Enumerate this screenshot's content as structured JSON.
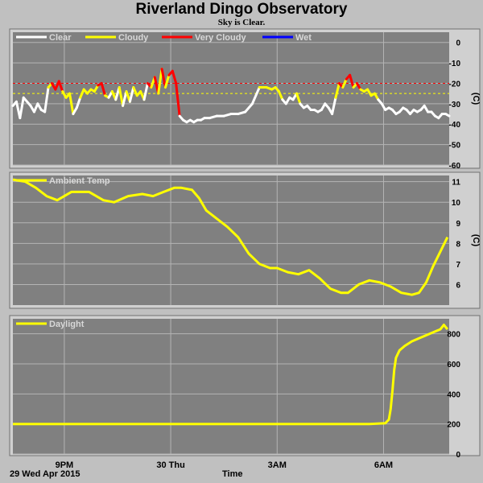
{
  "title": "Riverland Dingo Observatory",
  "subtitle": "Sky is Clear.",
  "footer": {
    "date": "29 Wed Apr 2015",
    "xlabel": "Time"
  },
  "x_ticks": [
    {
      "label": "9PM",
      "t": 0
    },
    {
      "label": "30 Thu",
      "t": 3
    },
    {
      "label": "3AM",
      "t": 6
    },
    {
      "label": "6AM",
      "t": 9
    }
  ],
  "colors": {
    "panel_bg": "#808080",
    "grid": "#b4b4b4",
    "clear": "#ffffff",
    "cloudy": "#ffff00",
    "very_cloudy": "#ff0000",
    "wet": "#0000ff",
    "ambient": "#ffff00",
    "daylight": "#ffff00",
    "threshold_cloudy": "#ffff00",
    "threshold_very_cloudy": "#ff0000",
    "legend_text": "#d8d8d8"
  },
  "chart_data": [
    {
      "type": "line",
      "name": "sky",
      "legend": [
        "Clear",
        "Cloudy",
        "Very Cloudy",
        "Wet"
      ],
      "ylabel": "(C)",
      "yticks": [
        0,
        -10,
        -20,
        -30,
        -40,
        -50,
        -60
      ],
      "ylim": [
        -60,
        5
      ],
      "xlim": [
        -1.45,
        10.85
      ],
      "thresholds": [
        -20,
        -25
      ],
      "x": [
        -1.45,
        -1.35,
        -1.25,
        -1.15,
        -1.05,
        -0.95,
        -0.85,
        -0.75,
        -0.65,
        -0.55,
        -0.45,
        -0.35,
        -0.25,
        -0.15,
        -0.05,
        0.05,
        0.15,
        0.25,
        0.35,
        0.45,
        0.55,
        0.65,
        0.75,
        0.85,
        0.95,
        1.05,
        1.15,
        1.25,
        1.35,
        1.45,
        1.55,
        1.65,
        1.75,
        1.85,
        1.95,
        2.05,
        2.15,
        2.25,
        2.35,
        2.45,
        2.55,
        2.65,
        2.75,
        2.85,
        2.95,
        3.05,
        3.15,
        3.25,
        3.35,
        3.45,
        3.55,
        3.65,
        3.75,
        3.85,
        3.95,
        4.1,
        4.3,
        4.5,
        4.7,
        4.9,
        5.1,
        5.3,
        5.5,
        5.7,
        5.85,
        5.95,
        6.05,
        6.15,
        6.25,
        6.35,
        6.45,
        6.55,
        6.65,
        6.75,
        6.85,
        6.95,
        7.05,
        7.15,
        7.25,
        7.35,
        7.45,
        7.55,
        7.65,
        7.75,
        7.85,
        7.95,
        8.05,
        8.15,
        8.25,
        8.35,
        8.45,
        8.55,
        8.65,
        8.75,
        8.85,
        8.95,
        9.05,
        9.15,
        9.25,
        9.35,
        9.45,
        9.55,
        9.65,
        9.75,
        9.85,
        9.95,
        10.05,
        10.15,
        10.25,
        10.35,
        10.45,
        10.55,
        10.65,
        10.75,
        10.85
      ],
      "y": [
        -31,
        -29,
        -37,
        -27,
        -29,
        -31,
        -34,
        -30,
        -33,
        -34,
        -22,
        -20,
        -23,
        -19,
        -24,
        -27,
        -25,
        -35,
        -32,
        -27,
        -23,
        -25,
        -23,
        -24,
        -21,
        -20,
        -26,
        -27,
        -24,
        -28,
        -22,
        -31,
        -24,
        -29,
        -22,
        -26,
        -24,
        -28,
        -20,
        -22,
        -17,
        -25,
        -13,
        -22,
        -16,
        -14,
        -20,
        -36,
        -38,
        -39,
        -38,
        -39,
        -38,
        -38,
        -37,
        -37,
        -36,
        -36,
        -35,
        -35,
        -34,
        -30,
        -22,
        -22,
        -23,
        -22,
        -24,
        -28,
        -30,
        -27,
        -28,
        -25,
        -30,
        -32,
        -31,
        -33,
        -33,
        -34,
        -33,
        -30,
        -32,
        -35,
        -27,
        -20,
        -22,
        -18,
        -16,
        -22,
        -20,
        -23,
        -24,
        -23,
        -26,
        -25,
        -28,
        -30,
        -33,
        -32,
        -33,
        -35,
        -34,
        -32,
        -33,
        -35,
        -33,
        -34,
        -33,
        -31,
        -34,
        -34,
        -36,
        -37,
        -35,
        -35,
        -36
      ],
      "state": [
        "clear",
        "clear",
        "clear",
        "clear",
        "clear",
        "clear",
        "clear",
        "clear",
        "clear",
        "clear",
        "cloudy",
        "very_cloudy",
        "very_cloudy",
        "very_cloudy",
        "cloudy",
        "cloudy",
        "cloudy",
        "clear",
        "clear",
        "cloudy",
        "cloudy",
        "cloudy",
        "cloudy",
        "cloudy",
        "very_cloudy",
        "very_cloudy",
        "cloudy",
        "clear",
        "cloudy",
        "clear",
        "cloudy",
        "clear",
        "cloudy",
        "clear",
        "cloudy",
        "cloudy",
        "cloudy",
        "clear",
        "very_cloudy",
        "cloudy",
        "very_cloudy",
        "cloudy",
        "very_cloudy",
        "cloudy",
        "very_cloudy",
        "very_cloudy",
        "very_cloudy",
        "clear",
        "clear",
        "clear",
        "clear",
        "clear",
        "clear",
        "clear",
        "clear",
        "clear",
        "clear",
        "clear",
        "clear",
        "clear",
        "clear",
        "clear",
        "cloudy",
        "cloudy",
        "cloudy",
        "cloudy",
        "cloudy",
        "clear",
        "clear",
        "clear",
        "clear",
        "cloudy",
        "clear",
        "clear",
        "clear",
        "clear",
        "clear",
        "clear",
        "clear",
        "clear",
        "clear",
        "clear",
        "cloudy",
        "very_cloudy",
        "cloudy",
        "very_cloudy",
        "very_cloudy",
        "cloudy",
        "very_cloudy",
        "cloudy",
        "cloudy",
        "cloudy",
        "cloudy",
        "cloudy",
        "clear",
        "clear",
        "clear",
        "clear",
        "clear",
        "clear",
        "clear",
        "clear",
        "clear",
        "clear",
        "clear",
        "clear",
        "clear",
        "clear",
        "clear",
        "clear",
        "clear",
        "clear",
        "clear",
        "clear",
        "clear"
      ]
    },
    {
      "type": "line",
      "name": "ambient",
      "legend": [
        "Ambient Temp"
      ],
      "ylabel": "(C)",
      "yticks": [
        11,
        10,
        9,
        8,
        7,
        6
      ],
      "ylim": [
        5,
        11.3
      ],
      "xlim": [
        -1.45,
        10.85
      ],
      "x": [
        -1.45,
        -1.1,
        -0.8,
        -0.5,
        -0.2,
        0.2,
        0.7,
        1.1,
        1.4,
        1.8,
        2.2,
        2.5,
        2.8,
        3.1,
        3.3,
        3.6,
        3.8,
        4.0,
        4.3,
        4.6,
        4.9,
        5.2,
        5.5,
        5.8,
        6.0,
        6.3,
        6.6,
        6.9,
        7.2,
        7.5,
        7.8,
        8.0,
        8.3,
        8.6,
        8.9,
        9.2,
        9.5,
        9.8,
        10.0,
        10.2,
        10.4,
        10.6,
        10.8
      ],
      "y": [
        11.1,
        11.0,
        10.7,
        10.3,
        10.1,
        10.5,
        10.5,
        10.1,
        10.0,
        10.3,
        10.4,
        10.3,
        10.5,
        10.7,
        10.7,
        10.6,
        10.2,
        9.6,
        9.2,
        8.8,
        8.3,
        7.5,
        7.0,
        6.8,
        6.8,
        6.6,
        6.5,
        6.7,
        6.3,
        5.8,
        5.6,
        5.6,
        6.0,
        6.2,
        6.1,
        5.9,
        5.6,
        5.5,
        5.6,
        6.1,
        6.9,
        7.6,
        8.3
      ]
    },
    {
      "type": "line",
      "name": "daylight",
      "legend": [
        "Daylight"
      ],
      "ylabel": "",
      "yticks": [
        800,
        600,
        400,
        200,
        0
      ],
      "ylim": [
        0,
        900
      ],
      "xlim": [
        -1.45,
        10.85
      ],
      "x": [
        -1.45,
        0,
        1,
        2,
        3,
        4,
        5,
        6,
        7,
        8,
        8.6,
        9.05,
        9.15,
        9.2,
        9.25,
        9.3,
        9.35,
        9.45,
        9.6,
        9.8,
        10.0,
        10.2,
        10.4,
        10.5,
        10.6,
        10.7,
        10.8
      ],
      "y": [
        200,
        200,
        200,
        200,
        200,
        200,
        200,
        200,
        200,
        200,
        200,
        205,
        230,
        300,
        420,
        560,
        640,
        690,
        720,
        750,
        770,
        790,
        810,
        820,
        830,
        860,
        830
      ]
    }
  ]
}
